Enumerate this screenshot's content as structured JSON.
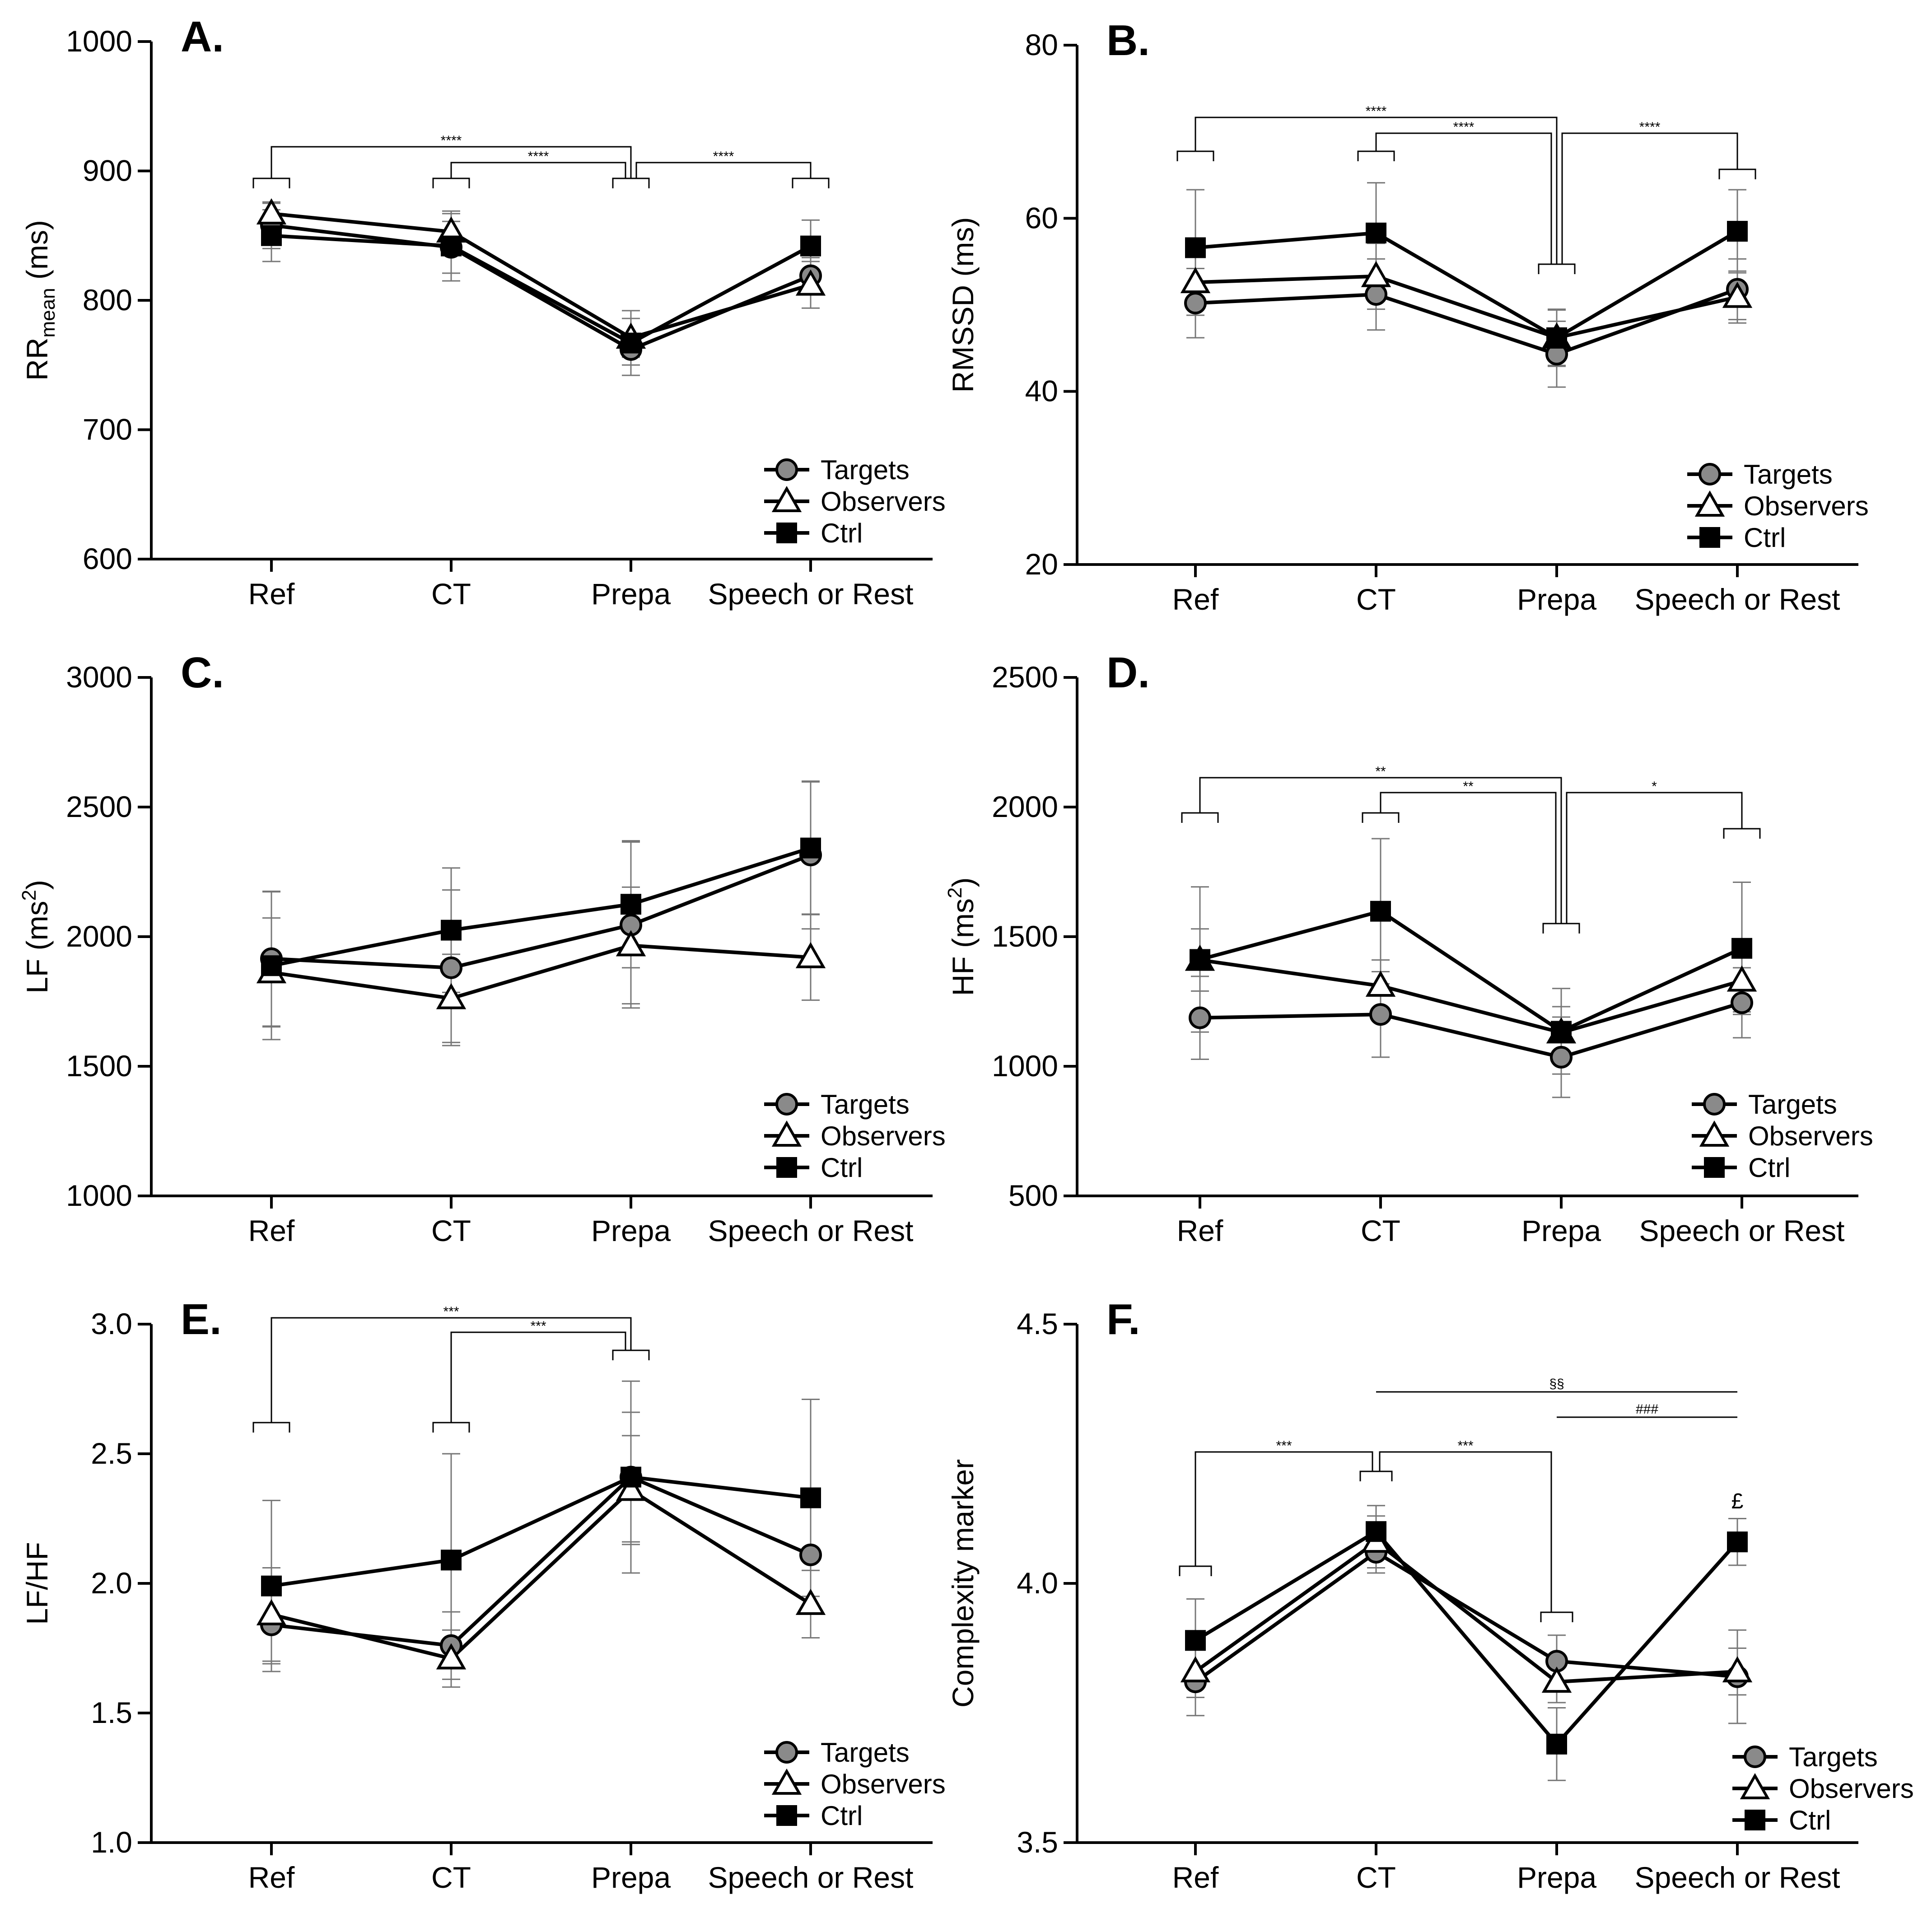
{
  "legend": [
    "Targets",
    "Observers",
    "Ctrl"
  ],
  "categories": [
    "Ref",
    "CT",
    "Prepa",
    "Speech or Rest"
  ],
  "chart_data": [
    {
      "panel": "A.",
      "type": "line",
      "ylabel": "RR",
      "ylabel_sub": "mean",
      "ylabel_unit": " (ms)",
      "ylim": [
        600,
        1000
      ],
      "yticks": [
        "600",
        "700",
        "800",
        "900",
        "1000"
      ],
      "categories": [
        "Ref",
        "CT",
        "Prepa",
        "Speech or Rest"
      ],
      "series": [
        {
          "name": "Targets",
          "values": [
            858,
            841,
            762,
            819
          ],
          "errors": [
            18,
            20,
            12,
            14
          ]
        },
        {
          "name": "Observers",
          "values": [
            867,
            853,
            771,
            812
          ],
          "errors": [
            8,
            14,
            15,
            18
          ]
        },
        {
          "name": "Ctrl",
          "values": [
            850,
            842,
            767,
            842
          ],
          "errors": [
            20,
            27,
            25,
            20
          ]
        }
      ],
      "significance": [
        {
          "from": 0,
          "to": 2,
          "label": "****"
        },
        {
          "from": 1,
          "to": 2,
          "label": "****"
        },
        {
          "from": 2,
          "to": 3,
          "label": "****"
        }
      ]
    },
    {
      "panel": "B.",
      "type": "line",
      "ylabel": "RMSSD (ms)",
      "ylim": [
        20,
        80
      ],
      "yticks": [
        "20",
        "40",
        "60",
        "80"
      ],
      "categories": [
        "Ref",
        "CT",
        "Prepa",
        "Speech or Rest"
      ],
      "series": [
        {
          "name": "Targets",
          "values": [
            50.2,
            51.2,
            44.3,
            51.8
          ],
          "errors": [
            4.0,
            4.1,
            3.8,
            3.5
          ]
        },
        {
          "name": "Observers",
          "values": [
            52.6,
            53.3,
            46.2,
            50.9
          ],
          "errors": [
            3.8,
            3.8,
            3.2,
            3.0
          ]
        },
        {
          "name": "Ctrl",
          "values": [
            56.6,
            58.3,
            46.2,
            58.5
          ],
          "errors": [
            6.7,
            5.8,
            3.3,
            4.8
          ]
        }
      ],
      "significance": [
        {
          "from": 0,
          "to": 2,
          "label": "****"
        },
        {
          "from": 1,
          "to": 2,
          "label": "****"
        },
        {
          "from": 2,
          "to": 3,
          "label": "****"
        }
      ]
    },
    {
      "panel": "C.",
      "type": "line",
      "ylabel": "LF (ms",
      "ylabel_sup": "2",
      "ylabel_unit": ")",
      "ylim": [
        1000,
        3000
      ],
      "yticks": [
        "1000",
        "1500",
        "2000",
        "2500",
        "3000"
      ],
      "categories": [
        "Ref",
        "CT",
        "Prepa",
        "Speech or Rest"
      ],
      "series": [
        {
          "name": "Targets",
          "values": [
            1915,
            1880,
            2045,
            2315
          ],
          "errors": [
            260,
            300,
            320,
            285
          ]
        },
        {
          "name": "Observers",
          "values": [
            1862,
            1762,
            1966,
            1920
          ],
          "errors": [
            210,
            170,
            225,
            165
          ]
        },
        {
          "name": "Ctrl",
          "values": [
            1888,
            2025,
            2125,
            2342
          ],
          "errors": [
            285,
            240,
            245,
            255
          ]
        }
      ],
      "significance": []
    },
    {
      "panel": "D.",
      "type": "line",
      "ylabel": "HF (ms",
      "ylabel_sup": "2",
      "ylabel_unit": ")",
      "ylim": [
        500,
        2500
      ],
      "yticks": [
        "500",
        "1000",
        "1500",
        "2000",
        "2500"
      ],
      "categories": [
        "Ref",
        "CT",
        "Prepa",
        "Speech or Rest"
      ],
      "series": [
        {
          "name": "Targets",
          "values": [
            1187,
            1200,
            1035,
            1245
          ],
          "errors": [
            160,
            165,
            155,
            135
          ]
        },
        {
          "name": "Observers",
          "values": [
            1410,
            1310,
            1130,
            1330
          ],
          "errors": [
            120,
            100,
            100,
            120
          ]
        },
        {
          "name": "Ctrl",
          "values": [
            1412,
            1598,
            1135,
            1455
          ],
          "errors": [
            280,
            280,
            165,
            255
          ]
        }
      ],
      "significance": [
        {
          "from": 0,
          "to": 2,
          "label": "**"
        },
        {
          "from": 1,
          "to": 2,
          "label": "**"
        },
        {
          "from": 2,
          "to": 3,
          "label": "*"
        }
      ]
    },
    {
      "panel": "E.",
      "type": "line",
      "ylabel": "LF/HF",
      "ylim": [
        1.0,
        3.0
      ],
      "yticks": [
        "1.0",
        "1.5",
        "2.0",
        "2.5",
        "3.0"
      ],
      "categories": [
        "Ref",
        "CT",
        "Prepa",
        "Speech or Rest"
      ],
      "series": [
        {
          "name": "Targets",
          "values": [
            1.84,
            1.76,
            2.41,
            2.11
          ],
          "errors": [
            0.15,
            0.13,
            0.25,
            0.2
          ]
        },
        {
          "name": "Observers",
          "values": [
            1.88,
            1.71,
            2.36,
            1.92
          ],
          "errors": [
            0.18,
            0.11,
            0.21,
            0.13
          ]
        },
        {
          "name": "Ctrl",
          "values": [
            1.99,
            2.09,
            2.41,
            2.33
          ],
          "errors": [
            0.33,
            0.41,
            0.37,
            0.38
          ]
        }
      ],
      "significance": [
        {
          "from": 0,
          "to": 2,
          "label": "***"
        },
        {
          "from": 1,
          "to": 2,
          "label": "***"
        }
      ]
    },
    {
      "panel": "F.",
      "type": "line",
      "ylabel": "Complexity marker",
      "ylim": [
        3.5,
        4.5
      ],
      "yticks": [
        "3.5",
        "4.0",
        "4.5"
      ],
      "categories": [
        "Ref",
        "CT",
        "Prepa",
        "Speech or Rest"
      ],
      "series": [
        {
          "name": "Targets",
          "values": [
            3.81,
            4.06,
            3.85,
            3.82
          ],
          "errors": [
            0.065,
            0.04,
            0.05,
            0.09
          ]
        },
        {
          "name": "Observers",
          "values": [
            3.83,
            4.08,
            3.81,
            3.83
          ],
          "errors": [
            0.05,
            0.05,
            0.04,
            0.045
          ]
        },
        {
          "name": "Ctrl",
          "values": [
            3.89,
            4.1,
            3.69,
            4.08
          ],
          "errors": [
            0.08,
            0.05,
            0.07,
            0.045
          ]
        }
      ],
      "significance": [
        {
          "from": 0,
          "to": 1,
          "label": "***"
        },
        {
          "from": 1,
          "to": 2,
          "label": "***"
        }
      ],
      "lines": [
        {
          "from": 1,
          "to": 3,
          "label": "§§"
        },
        {
          "from": 2,
          "to": 3,
          "label": "###"
        }
      ],
      "annotations": [
        {
          "category": 3,
          "label": "£"
        }
      ]
    }
  ]
}
